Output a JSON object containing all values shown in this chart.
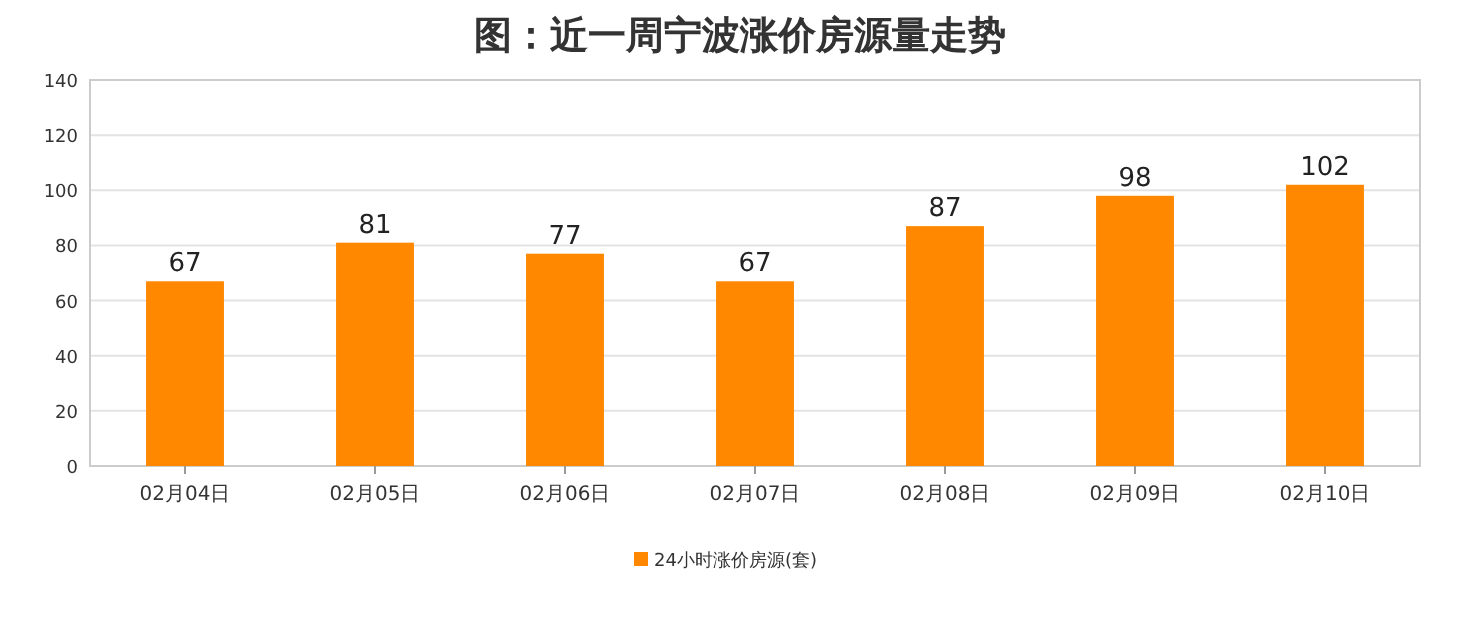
{
  "chart_data": {
    "type": "bar",
    "title": "图：近一周宁波涨价房源量走势",
    "categories": [
      "02月04日",
      "02月05日",
      "02月06日",
      "02月07日",
      "02月08日",
      "02月09日",
      "02月10日"
    ],
    "series": [
      {
        "name": "24小时涨价房源(套)",
        "color": "#ff8800",
        "values": [
          67,
          81,
          77,
          67,
          87,
          98,
          102
        ]
      }
    ],
    "ylim": [
      0,
      140
    ],
    "yticks": [
      0,
      20,
      40,
      60,
      80,
      100,
      120,
      140
    ],
    "grid": "y",
    "legend": "bottom",
    "data_labels": true
  }
}
